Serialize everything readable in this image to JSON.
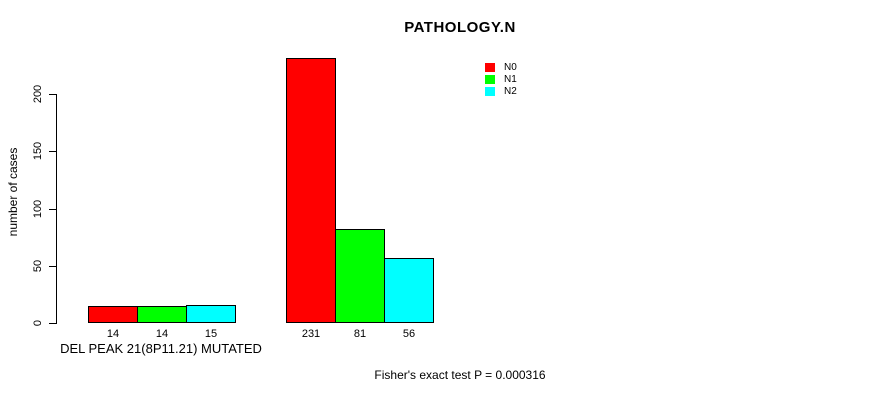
{
  "figure": {
    "background_color": "#ffffff",
    "text_color": "#000000"
  },
  "chart_data": {
    "type": "bar",
    "title": "PATHOLOGY.N",
    "xlabel": "DEL PEAK 21(8P11.21) MUTATED",
    "ylabel": "number of cases",
    "ylim": [
      0,
      231
    ],
    "yticks": [
      0,
      50,
      100,
      150,
      200
    ],
    "grid": false,
    "categories": [
      "DEL PEAK 21(8P11.21) MUTATED",
      ""
    ],
    "series": [
      {
        "name": "N0",
        "color": "#FF0000",
        "values": [
          14,
          231
        ]
      },
      {
        "name": "N1",
        "color": "#00FF00",
        "values": [
          14,
          81
        ]
      },
      {
        "name": "N2",
        "color": "#00FFFF",
        "values": [
          15,
          56
        ]
      }
    ],
    "bar_value_labels": [
      [
        "14",
        "14",
        "15"
      ],
      [
        "231",
        "81",
        "56"
      ]
    ],
    "legend": [
      {
        "label": "N0",
        "color": "#FF0000"
      },
      {
        "label": "N1",
        "color": "#00FF00"
      },
      {
        "label": "N2",
        "color": "#00FFFF"
      }
    ],
    "legend_position": "top-right",
    "annotation": "Fisher's exact test P = 0.000316"
  }
}
